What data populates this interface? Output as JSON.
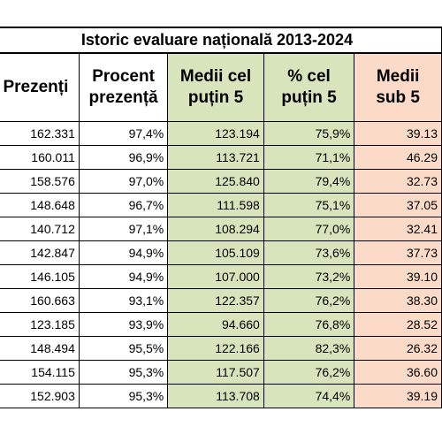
{
  "title": "Istoric evaluare națională 2013-2024",
  "headers": [
    [
      "Prezenți"
    ],
    [
      "Procent",
      "prezență"
    ],
    [
      "Medii cel",
      "puțin 5"
    ],
    [
      "% cel",
      "puțin 5"
    ],
    [
      "Medii",
      "sub 5"
    ]
  ],
  "rows": [
    [
      "162.331",
      "97,4%",
      "123.194",
      "75,9%",
      "39.13"
    ],
    [
      "160.011",
      "96,9%",
      "113.721",
      "71,1%",
      "46.29"
    ],
    [
      "158.576",
      "97,0%",
      "125.840",
      "79,4%",
      "32.73"
    ],
    [
      "148.648",
      "96,7%",
      "111.598",
      "75,1%",
      "37.05"
    ],
    [
      "140.712",
      "97,1%",
      "108.294",
      "77,0%",
      "32.41"
    ],
    [
      "142.847",
      "94,9%",
      "105.109",
      "73,6%",
      "37.73"
    ],
    [
      "146.105",
      "94,9%",
      "107.000",
      "73,2%",
      "39.10"
    ],
    [
      "160.663",
      "93,1%",
      "122.357",
      "76,2%",
      "38.30"
    ],
    [
      "123.185",
      "93,9%",
      "94.660",
      "76,8%",
      "28.52"
    ],
    [
      "148.494",
      "95,5%",
      "122.166",
      "82,3%",
      "26.32"
    ],
    [
      "154.115",
      "95,3%",
      "117.507",
      "76,2%",
      "36.60"
    ],
    [
      "152.903",
      "95,3%",
      "113.708",
      "74,4%",
      "39.19"
    ]
  ],
  "colors": {
    "green_fill": "#d8e4bc",
    "peach_fill": "#fcdac8"
  }
}
